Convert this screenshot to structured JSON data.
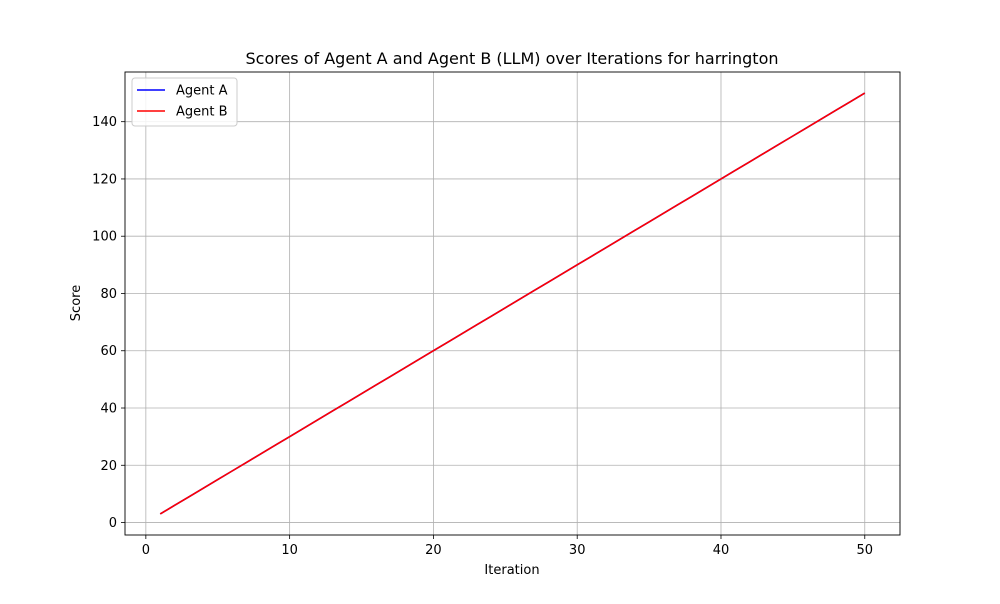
{
  "chart_data": {
    "type": "line",
    "title": "Scores of Agent A and Agent B (LLM) over Iterations for harrington",
    "xlabel": "Iteration",
    "ylabel": "Score",
    "xlim": [
      -1.45,
      52.45
    ],
    "ylim": [
      -4.35,
      157.35
    ],
    "xticks": [
      0,
      10,
      20,
      30,
      40,
      50
    ],
    "yticks": [
      0,
      20,
      40,
      60,
      80,
      100,
      120,
      140
    ],
    "grid": true,
    "legend_position": "upper-left",
    "x": [
      1,
      2,
      3,
      4,
      5,
      6,
      7,
      8,
      9,
      10,
      11,
      12,
      13,
      14,
      15,
      16,
      17,
      18,
      19,
      20,
      21,
      22,
      23,
      24,
      25,
      26,
      27,
      28,
      29,
      30,
      31,
      32,
      33,
      34,
      35,
      36,
      37,
      38,
      39,
      40,
      41,
      42,
      43,
      44,
      45,
      46,
      47,
      48,
      49,
      50
    ],
    "series": [
      {
        "name": "Agent A",
        "color": "#0000ff",
        "values": [
          3,
          6,
          9,
          12,
          15,
          18,
          21,
          24,
          27,
          30,
          33,
          36,
          39,
          42,
          45,
          48,
          51,
          54,
          57,
          60,
          63,
          66,
          69,
          72,
          75,
          78,
          81,
          84,
          87,
          90,
          93,
          96,
          99,
          102,
          105,
          108,
          111,
          114,
          117,
          120,
          123,
          126,
          129,
          132,
          135,
          138,
          141,
          144,
          147,
          150
        ]
      },
      {
        "name": "Agent B",
        "color": "#ff0000",
        "values": [
          3,
          6,
          9,
          12,
          15,
          18,
          21,
          24,
          27,
          30,
          33,
          36,
          39,
          42,
          45,
          48,
          51,
          54,
          57,
          60,
          63,
          66,
          69,
          72,
          75,
          78,
          81,
          84,
          87,
          90,
          93,
          96,
          99,
          102,
          105,
          108,
          111,
          114,
          117,
          120,
          123,
          126,
          129,
          132,
          135,
          138,
          141,
          144,
          147,
          150
        ]
      }
    ]
  }
}
